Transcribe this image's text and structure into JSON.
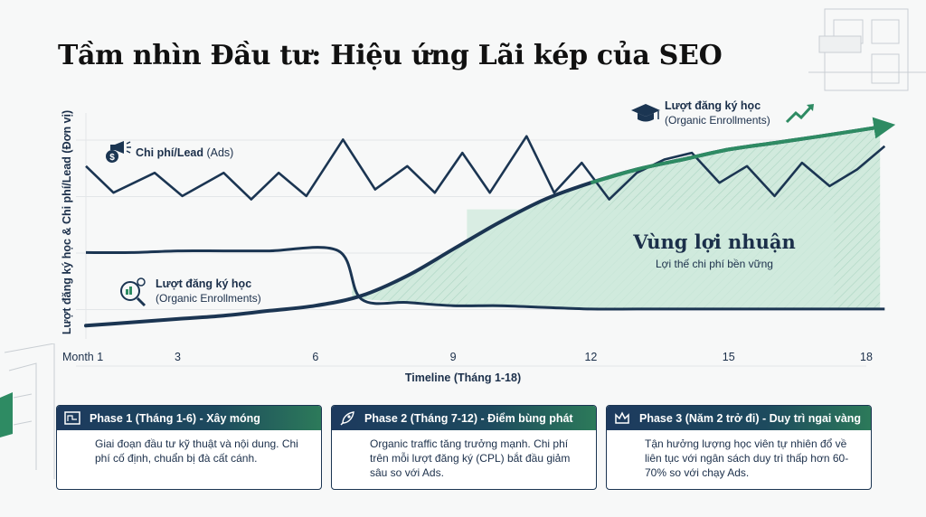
{
  "title": "Tầm nhìn Đầu tư: Hiệu ứng Lãi kép của SEO",
  "chart_data": {
    "type": "line",
    "x": [
      1,
      2,
      3,
      4,
      5,
      6,
      7,
      8,
      9,
      10,
      11,
      12,
      13,
      14,
      15,
      16,
      17,
      18
    ],
    "xlabel": "Timeline (Tháng 1-18)",
    "xticks": [
      {
        "value": 1,
        "label": "Month 1"
      },
      {
        "value": 3,
        "label": "3"
      },
      {
        "value": 6,
        "label": "6"
      },
      {
        "value": 9,
        "label": "9"
      },
      {
        "value": 12,
        "label": "12"
      },
      {
        "value": 15,
        "label": "15"
      },
      {
        "value": 18,
        "label": "18"
      }
    ],
    "ylabel": "Lượt đăng ký học & Chi phí/Lead (Đơn vị)",
    "series": [
      {
        "name": "Chi phí/Lead (Ads)",
        "bold": "Chi phí/Lead",
        "rest": " (Ads)",
        "color": "#1b3552",
        "x": [
          1,
          1.6,
          2.5,
          3.1,
          4,
          4.6,
          5.2,
          5.8,
          6.6,
          7.3,
          8,
          8.6,
          9.2,
          9.8,
          10.6,
          11.2,
          11.8,
          12.4,
          13,
          13.6,
          14.2,
          14.8,
          15.4,
          16,
          16.6,
          17.2,
          17.8,
          18.4
        ],
        "values": [
          5.8,
          5.0,
          5.6,
          4.9,
          5.6,
          4.8,
          5.6,
          4.9,
          6.6,
          5.1,
          5.8,
          5.0,
          6.2,
          5.0,
          6.7,
          5.0,
          5.9,
          4.8,
          5.6,
          6.0,
          6.2,
          5.3,
          5.8,
          4.9,
          5.9,
          5.2,
          5.7,
          6.4
        ]
      },
      {
        "name": "Chi phí/Lead decline",
        "color": "#1b3552",
        "x": [
          1,
          2,
          3,
          4,
          5,
          6.5,
          7,
          8,
          9,
          10,
          11,
          12,
          13,
          14,
          15,
          16,
          17,
          18.4
        ],
        "values": [
          3.2,
          3.2,
          3.25,
          3.25,
          3.25,
          3.25,
          1.8,
          1.7,
          1.6,
          1.6,
          1.55,
          1.5,
          1.5,
          1.5,
          1.5,
          1.5,
          1.5,
          1.5
        ]
      },
      {
        "name": "Lượt đăng ký học (Organic Enrollments)",
        "bold": "Lượt đăng ký học",
        "rest": "(Organic Enrollments)",
        "color": "#1b3552",
        "x": [
          1,
          2,
          3,
          4,
          5,
          6,
          7,
          8,
          9,
          10,
          11,
          12,
          13,
          14,
          15,
          16,
          17,
          18.4
        ],
        "values": [
          1.0,
          1.1,
          1.2,
          1.3,
          1.45,
          1.6,
          1.9,
          2.5,
          3.3,
          4.1,
          4.8,
          5.3,
          5.7,
          6.0,
          6.3,
          6.5,
          6.7,
          7.0
        ]
      }
    ],
    "ylim": [
      0.6,
      7.4
    ],
    "annotations": {
      "profit_title": "Vùng lợi nhuận",
      "profit_subtitle": "Lợi thế chi phí bền vững"
    }
  },
  "phases": [
    {
      "title": "Phase 1 (Tháng 1-6) - Xây móng",
      "icon": "blueprint-icon",
      "text": "Giai đoạn đầu tư kỹ thuật và nội dung. Chi phí cố định, chuẩn bị đà cất cánh."
    },
    {
      "title": "Phase 2 (Tháng 7-12) - Điểm bùng phát",
      "icon": "rocket-icon",
      "text": "Organic traffic tăng trưởng mạnh. Chi phí trên mỗi lượt đăng ký (CPL) bắt đầu giảm sâu so với Ads."
    },
    {
      "title": "Phase 3 (Năm 2 trở đi) - Duy trì ngai vàng",
      "icon": "crown-icon",
      "text": "Tận hưởng lượng học viên tự nhiên đổ về liên tục với ngân sách duy trì thấp hơn 60-70% so với chạy Ads."
    }
  ],
  "colors": {
    "navy": "#1b3552",
    "green": "#2e8b63",
    "profit_fill": "#cfe9dc",
    "title": "#111111"
  }
}
